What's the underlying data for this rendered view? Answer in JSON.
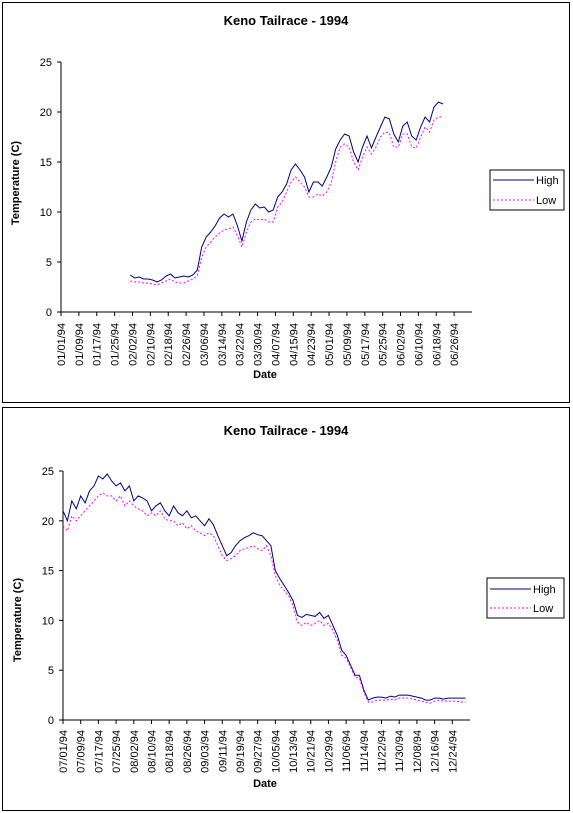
{
  "charts": [
    {
      "title": "Keno Tailrace - 1994",
      "xlabel": "Date",
      "ylabel": "Temperature (C)",
      "legend": [
        "High",
        "Low"
      ]
    },
    {
      "title": "Keno Tailrace - 1994",
      "xlabel": "Date",
      "ylabel": "Temperature (C)",
      "legend": [
        "High",
        "Low"
      ]
    }
  ],
  "colors": {
    "high": "#000080",
    "low": "#ff00ff"
  },
  "chart_data": [
    {
      "type": "line",
      "title": "Keno Tailrace - 1994",
      "xlabel": "Date",
      "ylabel": "Temperature (C)",
      "ylim": [
        0,
        25
      ],
      "yticks": [
        0,
        5,
        10,
        15,
        20,
        25
      ],
      "x_start": "1994-01-01",
      "x_end": "1994-07-04",
      "xticks": [
        "01/01/94",
        "01/09/94",
        "01/17/94",
        "01/25/94",
        "02/02/94",
        "02/10/94",
        "02/18/94",
        "02/26/94",
        "03/06/94",
        "03/14/94",
        "03/22/94",
        "03/30/94",
        "04/07/94",
        "04/15/94",
        "04/23/94",
        "05/01/94",
        "05/09/94",
        "05/17/94",
        "05/25/94",
        "06/02/94",
        "06/10/94",
        "06/18/94",
        "06/26/94"
      ],
      "legend_position": "right",
      "series": [
        {
          "name": "High",
          "x": [
            "1994-02-01",
            "1994-02-03",
            "1994-02-05",
            "1994-02-07",
            "1994-02-09",
            "1994-02-11",
            "1994-02-13",
            "1994-02-15",
            "1994-02-17",
            "1994-02-19",
            "1994-02-21",
            "1994-02-23",
            "1994-02-25",
            "1994-02-27",
            "1994-03-01",
            "1994-03-03",
            "1994-03-05",
            "1994-03-07",
            "1994-03-09",
            "1994-03-11",
            "1994-03-13",
            "1994-03-15",
            "1994-03-17",
            "1994-03-19",
            "1994-03-21",
            "1994-03-23",
            "1994-03-25",
            "1994-03-27",
            "1994-03-29",
            "1994-03-31",
            "1994-04-02",
            "1994-04-04",
            "1994-04-06",
            "1994-04-08",
            "1994-04-10",
            "1994-04-12",
            "1994-04-14",
            "1994-04-16",
            "1994-04-18",
            "1994-04-20",
            "1994-04-22",
            "1994-04-24",
            "1994-04-26",
            "1994-04-28",
            "1994-04-30",
            "1994-05-02",
            "1994-05-04",
            "1994-05-06",
            "1994-05-08",
            "1994-05-10",
            "1994-05-12",
            "1994-05-14",
            "1994-05-16",
            "1994-05-18",
            "1994-05-20",
            "1994-05-22",
            "1994-05-24",
            "1994-05-26",
            "1994-05-28",
            "1994-05-30",
            "1994-06-01",
            "1994-06-03",
            "1994-06-05",
            "1994-06-07",
            "1994-06-09",
            "1994-06-11",
            "1994-06-13",
            "1994-06-15",
            "1994-06-17",
            "1994-06-19",
            "1994-06-21",
            "1994-06-23",
            "1994-06-25",
            "1994-06-27",
            "1994-06-29",
            "1994-07-01",
            "1994-07-03"
          ],
          "values": [
            3.7,
            3.4,
            3.5,
            3.3,
            3.3,
            3.2,
            3.0,
            3.2,
            3.6,
            3.8,
            3.4,
            3.5,
            3.6,
            3.5,
            3.7,
            4.2,
            6.5,
            7.5,
            8.0,
            8.6,
            9.4,
            9.8,
            9.5,
            9.8,
            8.6,
            7.1,
            9.0,
            10.2,
            10.8,
            10.4,
            10.5,
            10.0,
            10.2,
            11.5,
            12.0,
            12.8,
            14.2,
            14.8,
            14.2,
            13.5,
            12.0,
            13.0,
            13.0,
            12.6,
            13.5,
            14.5,
            16.3,
            17.2,
            17.8,
            17.6,
            16.0,
            15.0,
            16.5,
            17.6,
            16.4,
            17.5,
            18.5,
            19.5,
            19.3,
            17.8,
            17.0,
            18.6,
            19.0,
            17.6,
            17.2,
            18.5,
            19.5,
            19.0,
            20.5,
            21.0,
            20.8,
            null,
            null,
            null,
            null,
            null,
            null
          ]
        },
        {
          "name": "Low",
          "x": [
            "1994-02-01",
            "1994-02-03",
            "1994-02-05",
            "1994-02-07",
            "1994-02-09",
            "1994-02-11",
            "1994-02-13",
            "1994-02-15",
            "1994-02-17",
            "1994-02-19",
            "1994-02-21",
            "1994-02-23",
            "1994-02-25",
            "1994-02-27",
            "1994-03-01",
            "1994-03-03",
            "1994-03-05",
            "1994-03-07",
            "1994-03-09",
            "1994-03-11",
            "1994-03-13",
            "1994-03-15",
            "1994-03-17",
            "1994-03-19",
            "1994-03-21",
            "1994-03-23",
            "1994-03-25",
            "1994-03-27",
            "1994-03-29",
            "1994-03-31",
            "1994-04-02",
            "1994-04-04",
            "1994-04-06",
            "1994-04-08",
            "1994-04-10",
            "1994-04-12",
            "1994-04-14",
            "1994-04-16",
            "1994-04-18",
            "1994-04-20",
            "1994-04-22",
            "1994-04-24",
            "1994-04-26",
            "1994-04-28",
            "1994-04-30",
            "1994-05-02",
            "1994-05-04",
            "1994-05-06",
            "1994-05-08",
            "1994-05-10",
            "1994-05-12",
            "1994-05-14",
            "1994-05-16",
            "1994-05-18",
            "1994-05-20",
            "1994-05-22",
            "1994-05-24",
            "1994-05-26",
            "1994-05-28",
            "1994-05-30",
            "1994-06-01",
            "1994-06-03",
            "1994-06-05",
            "1994-06-07",
            "1994-06-09",
            "1994-06-11",
            "1994-06-13",
            "1994-06-15",
            "1994-06-17",
            "1994-06-19",
            "1994-06-21",
            "1994-06-23",
            "1994-06-25",
            "1994-06-27",
            "1994-06-29",
            "1994-07-01",
            "1994-07-03"
          ],
          "values": [
            3.1,
            3.0,
            3.0,
            2.9,
            2.9,
            2.8,
            2.7,
            2.9,
            3.1,
            3.3,
            3.0,
            2.9,
            2.9,
            3.1,
            3.3,
            3.6,
            5.5,
            6.5,
            7.0,
            7.5,
            7.9,
            8.2,
            8.3,
            8.5,
            7.6,
            6.5,
            8.0,
            9.0,
            9.3,
            9.2,
            9.3,
            9.0,
            9.0,
            10.5,
            11.0,
            12.0,
            13.0,
            13.5,
            13.0,
            12.5,
            11.5,
            11.5,
            11.8,
            11.6,
            12.0,
            13.0,
            15.0,
            16.5,
            16.8,
            16.5,
            15.0,
            14.2,
            15.5,
            16.5,
            15.8,
            16.5,
            17.5,
            18.0,
            17.9,
            16.5,
            16.5,
            17.8,
            17.8,
            16.5,
            16.4,
            17.5,
            18.5,
            18.0,
            19.2,
            19.5,
            19.5,
            null,
            null,
            null,
            null,
            null,
            null
          ]
        }
      ]
    },
    {
      "type": "line",
      "title": "Keno Tailrace - 1994",
      "xlabel": "Date",
      "ylabel": "Temperature (C)",
      "ylim": [
        0,
        25
      ],
      "yticks": [
        0,
        5,
        10,
        15,
        20,
        25
      ],
      "x_start": "1994-07-01",
      "x_end": "1995-01-01",
      "xticks": [
        "07/01/94",
        "07/09/94",
        "07/17/94",
        "07/25/94",
        "08/02/94",
        "08/10/94",
        "08/18/94",
        "08/26/94",
        "09/03/94",
        "09/11/94",
        "09/19/94",
        "09/27/94",
        "10/05/94",
        "10/13/94",
        "10/21/94",
        "10/29/94",
        "11/06/94",
        "11/14/94",
        "11/22/94",
        "11/30/94",
        "12/08/94",
        "12/16/94",
        "12/24/94"
      ],
      "legend_position": "right",
      "series": [
        {
          "name": "High",
          "x": [
            "1994-07-01",
            "1994-07-03",
            "1994-07-05",
            "1994-07-07",
            "1994-07-09",
            "1994-07-11",
            "1994-07-13",
            "1994-07-15",
            "1994-07-17",
            "1994-07-19",
            "1994-07-21",
            "1994-07-23",
            "1994-07-25",
            "1994-07-27",
            "1994-07-29",
            "1994-07-31",
            "1994-08-02",
            "1994-08-04",
            "1994-08-06",
            "1994-08-08",
            "1994-08-10",
            "1994-08-12",
            "1994-08-14",
            "1994-08-16",
            "1994-08-18",
            "1994-08-20",
            "1994-08-22",
            "1994-08-24",
            "1994-08-26",
            "1994-08-28",
            "1994-08-30",
            "1994-09-01",
            "1994-09-03",
            "1994-09-05",
            "1994-09-07",
            "1994-09-09",
            "1994-09-11",
            "1994-09-13",
            "1994-09-15",
            "1994-09-17",
            "1994-09-19",
            "1994-09-21",
            "1994-09-23",
            "1994-09-25",
            "1994-09-27",
            "1994-09-29",
            "1994-10-01",
            "1994-10-03",
            "1994-10-05",
            "1994-10-07",
            "1994-10-09",
            "1994-10-11",
            "1994-10-13",
            "1994-10-15",
            "1994-10-17",
            "1994-10-19",
            "1994-10-21",
            "1994-10-23",
            "1994-10-25",
            "1994-10-27",
            "1994-10-29",
            "1994-10-31",
            "1994-11-02",
            "1994-11-04",
            "1994-11-06",
            "1994-11-08",
            "1994-11-10",
            "1994-11-12",
            "1994-11-14",
            "1994-11-16",
            "1994-11-18",
            "1994-11-20",
            "1994-11-22",
            "1994-11-24",
            "1994-11-26",
            "1994-11-28",
            "1994-11-30",
            "1994-12-02",
            "1994-12-04",
            "1994-12-06",
            "1994-12-08",
            "1994-12-10",
            "1994-12-12",
            "1994-12-14",
            "1994-12-16",
            "1994-12-18",
            "1994-12-20",
            "1994-12-22",
            "1994-12-24",
            "1994-12-26",
            "1994-12-28",
            "1994-12-30"
          ],
          "values": [
            21.0,
            20.0,
            22.0,
            21.2,
            22.5,
            21.8,
            23.0,
            23.5,
            24.5,
            24.2,
            24.7,
            24.0,
            23.5,
            23.8,
            23.0,
            23.5,
            22.0,
            22.5,
            22.3,
            22.0,
            21.0,
            21.5,
            21.8,
            21.0,
            20.5,
            21.5,
            20.8,
            20.5,
            21.0,
            20.3,
            20.5,
            20.0,
            19.5,
            20.2,
            19.6,
            18.5,
            17.5,
            16.5,
            16.8,
            17.5,
            18.0,
            18.3,
            18.5,
            18.8,
            18.6,
            18.5,
            18.0,
            17.5,
            15.0,
            14.2,
            13.5,
            12.8,
            12.0,
            10.5,
            10.3,
            10.6,
            10.5,
            10.4,
            10.8,
            10.2,
            10.5,
            9.5,
            8.5,
            7.0,
            6.5,
            5.5,
            4.5,
            4.5,
            3.0,
            2.0,
            2.2,
            2.3,
            2.3,
            2.2,
            2.4,
            2.3,
            2.5,
            2.5,
            2.5,
            2.4,
            2.3,
            2.2,
            2.0,
            2.0,
            2.2,
            2.2,
            2.1,
            2.2,
            2.2,
            2.2,
            2.2,
            2.2
          ]
        },
        {
          "name": "Low",
          "x": [
            "1994-07-01",
            "1994-07-03",
            "1994-07-05",
            "1994-07-07",
            "1994-07-09",
            "1994-07-11",
            "1994-07-13",
            "1994-07-15",
            "1994-07-17",
            "1994-07-19",
            "1994-07-21",
            "1994-07-23",
            "1994-07-25",
            "1994-07-27",
            "1994-07-29",
            "1994-07-31",
            "1994-08-02",
            "1994-08-04",
            "1994-08-06",
            "1994-08-08",
            "1994-08-10",
            "1994-08-12",
            "1994-08-14",
            "1994-08-16",
            "1994-08-18",
            "1994-08-20",
            "1994-08-22",
            "1994-08-24",
            "1994-08-26",
            "1994-08-28",
            "1994-08-30",
            "1994-09-01",
            "1994-09-03",
            "1994-09-05",
            "1994-09-07",
            "1994-09-09",
            "1994-09-11",
            "1994-09-13",
            "1994-09-15",
            "1994-09-17",
            "1994-09-19",
            "1994-09-21",
            "1994-09-23",
            "1994-09-25",
            "1994-09-27",
            "1994-09-29",
            "1994-10-01",
            "1994-10-03",
            "1994-10-05",
            "1994-10-07",
            "1994-10-09",
            "1994-10-11",
            "1994-10-13",
            "1994-10-15",
            "1994-10-17",
            "1994-10-19",
            "1994-10-21",
            "1994-10-23",
            "1994-10-25",
            "1994-10-27",
            "1994-10-29",
            "1994-10-31",
            "1994-11-02",
            "1994-11-04",
            "1994-11-06",
            "1994-11-08",
            "1994-11-10",
            "1994-11-12",
            "1994-11-14",
            "1994-11-16",
            "1994-11-18",
            "1994-11-20",
            "1994-11-22",
            "1994-11-24",
            "1994-11-26",
            "1994-11-28",
            "1994-11-30",
            "1994-12-02",
            "1994-12-04",
            "1994-12-06",
            "1994-12-08",
            "1994-12-10",
            "1994-12-12",
            "1994-12-14",
            "1994-12-16",
            "1994-12-18",
            "1994-12-20",
            "1994-12-22",
            "1994-12-24",
            "1994-12-26",
            "1994-12-28",
            "1994-12-30"
          ],
          "values": [
            19.5,
            19.0,
            20.5,
            20.0,
            20.5,
            21.0,
            21.5,
            22.0,
            22.5,
            22.8,
            22.5,
            22.5,
            22.0,
            22.5,
            21.5,
            22.0,
            21.5,
            21.2,
            21.0,
            20.5,
            20.8,
            20.5,
            21.0,
            20.2,
            20.0,
            20.0,
            19.5,
            19.8,
            19.2,
            19.5,
            19.0,
            18.8,
            18.5,
            18.8,
            18.5,
            17.5,
            16.5,
            16.0,
            16.2,
            16.5,
            17.0,
            17.2,
            17.3,
            17.5,
            17.2,
            17.0,
            17.5,
            16.5,
            14.5,
            13.5,
            13.0,
            12.5,
            11.5,
            9.8,
            9.5,
            9.8,
            9.5,
            9.7,
            10.0,
            9.5,
            9.7,
            9.0,
            8.0,
            6.5,
            6.2,
            5.3,
            4.3,
            4.2,
            2.8,
            1.8,
            1.8,
            2.0,
            2.0,
            2.0,
            2.1,
            2.0,
            2.2,
            2.2,
            2.2,
            2.1,
            2.0,
            1.9,
            1.8,
            1.7,
            1.9,
            2.0,
            1.9,
            1.9,
            1.9,
            1.9,
            1.8,
            1.8
          ]
        }
      ]
    }
  ]
}
